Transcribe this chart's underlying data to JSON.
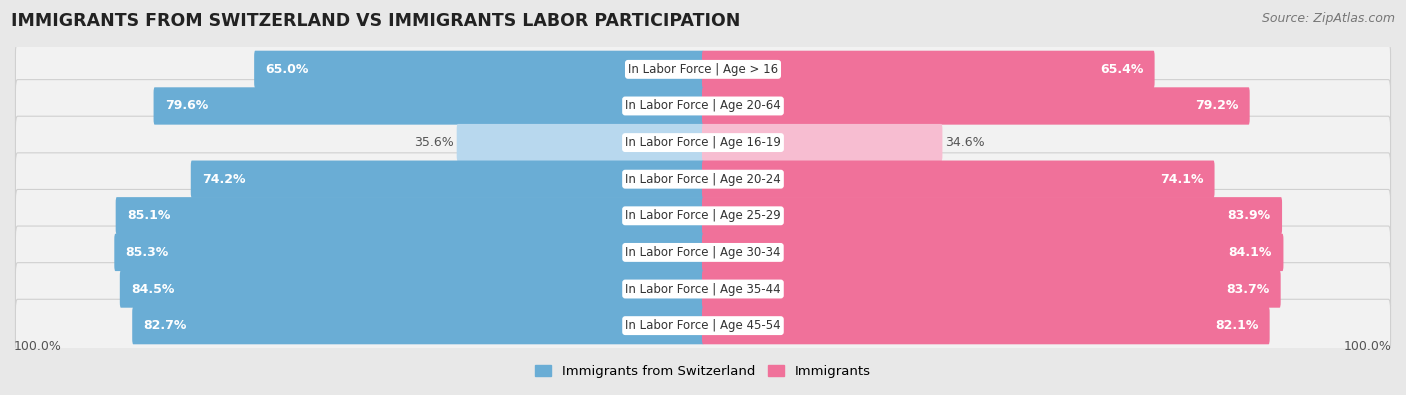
{
  "title": "IMMIGRANTS FROM SWITZERLAND VS IMMIGRANTS LABOR PARTICIPATION",
  "source": "Source: ZipAtlas.com",
  "categories": [
    "In Labor Force | Age > 16",
    "In Labor Force | Age 20-64",
    "In Labor Force | Age 16-19",
    "In Labor Force | Age 20-24",
    "In Labor Force | Age 25-29",
    "In Labor Force | Age 30-34",
    "In Labor Force | Age 35-44",
    "In Labor Force | Age 45-54"
  ],
  "left_values": [
    65.0,
    79.6,
    35.6,
    74.2,
    85.1,
    85.3,
    84.5,
    82.7
  ],
  "right_values": [
    65.4,
    79.2,
    34.6,
    74.1,
    83.9,
    84.1,
    83.7,
    82.1
  ],
  "left_color": "#6aadd5",
  "right_color": "#f0719a",
  "left_light_color": "#b8d8ee",
  "right_light_color": "#f7bdd1",
  "bg_color": "#e8e8e8",
  "bar_bg_color": "#f2f2f2",
  "bar_edge_color": "#d0d0d0",
  "left_label": "Immigrants from Switzerland",
  "right_label": "Immigrants",
  "max_val": 100.0,
  "title_fontsize": 12.5,
  "source_fontsize": 9,
  "value_fontsize": 9,
  "cat_fontsize": 8.5,
  "tick_fontsize": 9
}
